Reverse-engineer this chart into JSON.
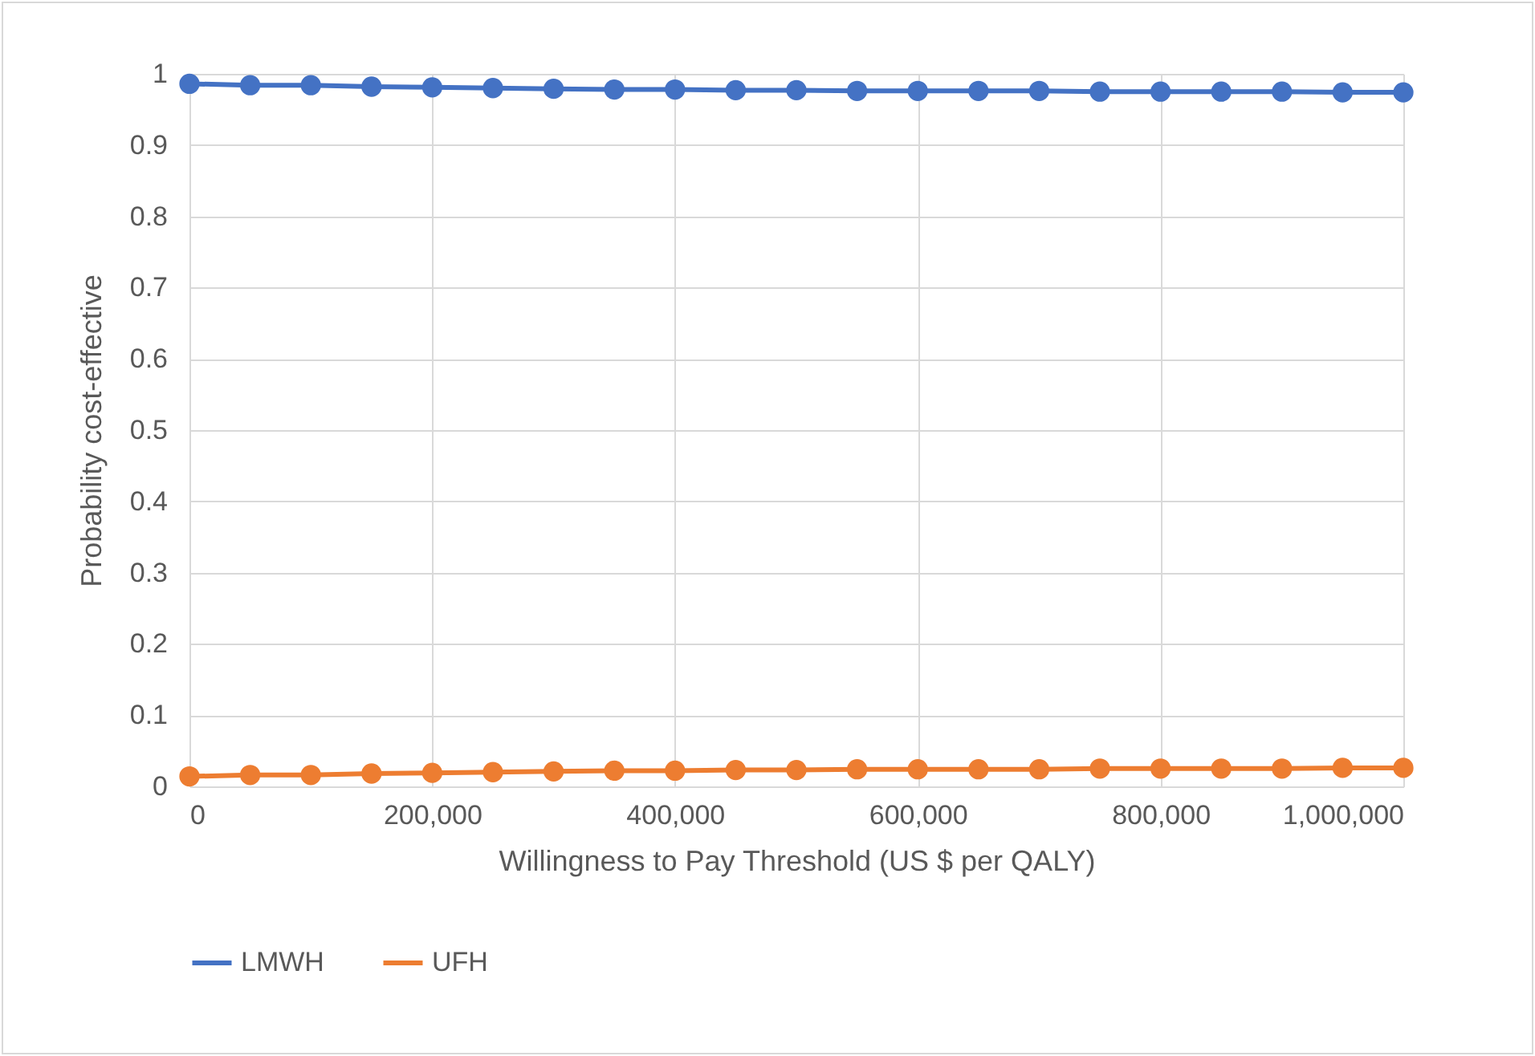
{
  "chart_data": {
    "type": "line",
    "xlabel": "Willingness to Pay Threshold (US $ per QALY)",
    "ylabel": "Probability cost-effective",
    "x": [
      0,
      50000,
      100000,
      150000,
      200000,
      250000,
      300000,
      350000,
      400000,
      450000,
      500000,
      550000,
      600000,
      650000,
      700000,
      750000,
      800000,
      850000,
      900000,
      950000,
      1000000
    ],
    "series": [
      {
        "name": "LMWH",
        "color": "#4472c4",
        "values": [
          0.986,
          0.984,
          0.984,
          0.982,
          0.981,
          0.98,
          0.979,
          0.978,
          0.978,
          0.977,
          0.977,
          0.976,
          0.976,
          0.976,
          0.976,
          0.975,
          0.975,
          0.975,
          0.975,
          0.974,
          0.974
        ]
      },
      {
        "name": "UFH",
        "color": "#ed7d31",
        "values": [
          0.014,
          0.016,
          0.016,
          0.018,
          0.019,
          0.02,
          0.021,
          0.022,
          0.022,
          0.023,
          0.023,
          0.024,
          0.024,
          0.024,
          0.024,
          0.025,
          0.025,
          0.025,
          0.025,
          0.026,
          0.026
        ]
      }
    ],
    "xlim": [
      0,
      1000000
    ],
    "xticks": [
      0,
      {
        "value": 200000,
        "label": "200,000"
      },
      {
        "value": 400000,
        "label": "400,000"
      },
      {
        "value": 600000,
        "label": "600,000"
      },
      {
        "value": 800000,
        "label": "800,000"
      },
      {
        "value": 1000000,
        "label": "1,000,000"
      }
    ],
    "ylim": [
      0,
      1
    ],
    "yticks": [
      0,
      0.1,
      0.2,
      0.3,
      0.4,
      0.5,
      0.6,
      0.7,
      0.8,
      0.9,
      1
    ],
    "grid": true,
    "legend": "bottom",
    "marker": "circle",
    "line_style": "solid"
  }
}
